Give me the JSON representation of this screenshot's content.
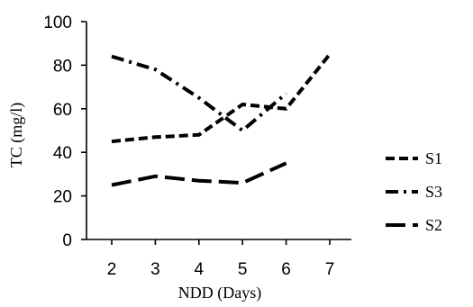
{
  "chart_data": {
    "type": "line",
    "x": [
      2,
      3,
      4,
      5,
      6,
      7
    ],
    "xlabel": "NDD (Days)",
    "ylabel": "TC (mg/l)",
    "ylim": [
      0,
      100
    ],
    "yticks": [
      0,
      20,
      40,
      60,
      80,
      100
    ],
    "grid": false,
    "legend_position": "right",
    "series": [
      {
        "name": "S1",
        "style": "dashed",
        "color": "#000000",
        "values": [
          45,
          47,
          48,
          62,
          60,
          85
        ]
      },
      {
        "name": "S3",
        "style": "dash-dot",
        "color": "#000000",
        "values": [
          84,
          78,
          65,
          50,
          67,
          null
        ]
      },
      {
        "name": "S2",
        "style": "long-dash",
        "color": "#000000",
        "values": [
          25,
          29,
          27,
          26,
          35,
          null
        ]
      }
    ]
  }
}
